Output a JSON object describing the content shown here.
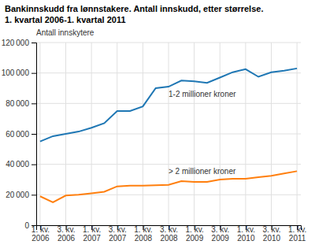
{
  "chart_data": {
    "type": "line",
    "title": "Bankinnskudd fra lønnstakere. Antall innskudd, etter størrelse.",
    "subtitle": "1. kvartal 2006-1. kvartal 2011",
    "y_label": "Antall innskytere",
    "categories": [
      "1. kv.\n2006",
      null,
      "3. kv.\n2006",
      null,
      "1. kv.\n2007",
      null,
      "3. kv.\n2007",
      null,
      "1. kv.\n2008",
      null,
      "3. kv.\n2008",
      null,
      "1. kv.\n2009",
      null,
      "3. kv.\n2009",
      null,
      "1. kv.\n2010",
      null,
      "3. kv.\n2010",
      null,
      "1. kv.\n2011"
    ],
    "series": [
      {
        "name": "1-2 millioner kroner",
        "values": [
          55000,
          58500,
          60000,
          61500,
          64000,
          67000,
          75000,
          75000,
          78000,
          90000,
          91000,
          95000,
          94500,
          93500,
          97000,
          100500,
          102500,
          97500,
          100500,
          101500,
          103000
        ]
      },
      {
        "name": "> 2 millioner kroner",
        "values": [
          19000,
          15000,
          19500,
          20000,
          21000,
          22000,
          25500,
          26000,
          26000,
          26200,
          26500,
          29000,
          28500,
          28500,
          30000,
          30500,
          30500,
          31500,
          32500,
          34000,
          35500
        ]
      }
    ],
    "ylim": [
      0,
      120000
    ],
    "yticks": [
      0,
      {
        "value": 20000,
        "label": "20 000"
      },
      {
        "value": 40000,
        "label": "40 000"
      },
      {
        "value": 60000,
        "label": "60 000"
      },
      {
        "value": 80000,
        "label": "80 000"
      },
      {
        "value": 100000,
        "label": "100 000"
      },
      {
        "value": 120000,
        "label": "120 000"
      }
    ],
    "grid": true
  }
}
